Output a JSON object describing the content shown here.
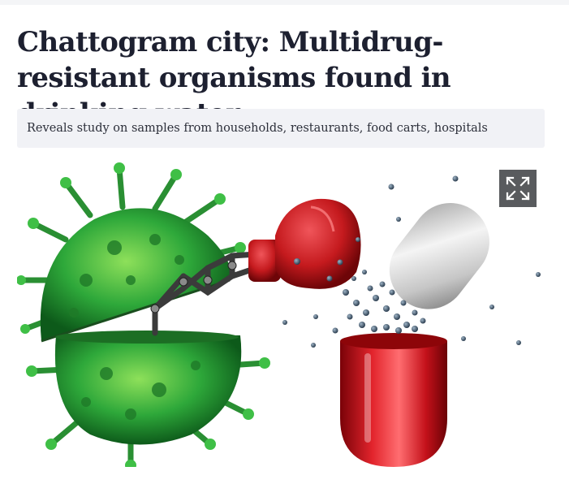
{
  "article": {
    "headline": "Chattogram city: Multidrug-resistant organisms found in drinking water",
    "subheading": "Reveals study on samples from households, restaurants, food carts, hospitals"
  },
  "image": {
    "subject": "virus-boxing-glove-pill-illustration",
    "colors": {
      "virus": "#2ea83a",
      "glove": "#c51a1e",
      "capsule_red": "#d0121b",
      "capsule_silver": "#c9c9c9",
      "particles": "#3d5368"
    }
  },
  "controls": {
    "expand_icon": "expand-arrows-icon"
  }
}
